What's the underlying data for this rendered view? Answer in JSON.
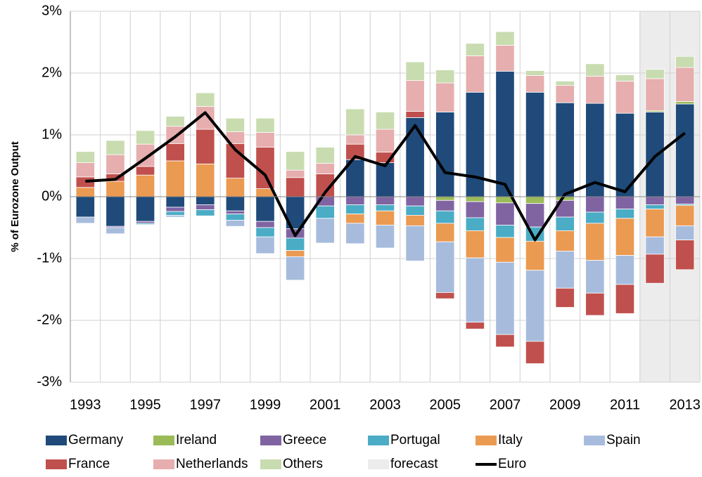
{
  "chart_data": {
    "type": "bar",
    "stacked": true,
    "y_label": "% of Eurozone Output",
    "categories": [
      "1993",
      null,
      "1995",
      null,
      "1997",
      null,
      "1999",
      null,
      "2001",
      null,
      "2003",
      null,
      "2005",
      null,
      "2007",
      null,
      "2009",
      null,
      "2011",
      null,
      "2013"
    ],
    "ylim": [
      -3,
      3
    ],
    "yticks": [
      {
        "value": 3,
        "label": "3%"
      },
      {
        "value": 2,
        "label": "2%"
      },
      {
        "value": 1,
        "label": "1%"
      },
      {
        "value": 0,
        "label": "0%"
      },
      {
        "value": -1,
        "label": "-1%"
      },
      {
        "value": -2,
        "label": "-2%"
      },
      {
        "value": -3,
        "label": "-3%"
      }
    ],
    "grid": true,
    "forecast": {
      "name": "forecast",
      "color": "#ececec",
      "categories": [
        19,
        20
      ]
    },
    "series": [
      {
        "name": "Germany",
        "color": "#1f4a7a",
        "values": [
          -0.33,
          -0.48,
          -0.4,
          -0.17,
          -0.13,
          -0.23,
          -0.4,
          -0.52,
          null,
          0.6,
          0.55,
          1.28,
          1.37,
          1.69,
          2.03,
          1.69,
          1.52,
          1.51,
          1.35,
          1.37,
          1.5
        ]
      },
      {
        "name": "Ireland",
        "color": "#9bbb59",
        "values": [
          null,
          null,
          null,
          null,
          null,
          null,
          null,
          null,
          null,
          null,
          null,
          null,
          -0.06,
          -0.08,
          -0.1,
          -0.11,
          -0.06,
          null,
          null,
          0.02,
          0.04
        ]
      },
      {
        "name": "Greece",
        "color": "#8064a2",
        "values": [
          null,
          -0.02,
          -0.03,
          -0.07,
          -0.08,
          -0.05,
          -0.1,
          -0.15,
          -0.15,
          -0.13,
          -0.13,
          -0.15,
          -0.17,
          -0.26,
          -0.36,
          -0.38,
          -0.27,
          -0.25,
          -0.2,
          -0.13,
          -0.12
        ]
      },
      {
        "name": "Portugal",
        "color": "#4bacc6",
        "values": [
          null,
          null,
          -0.02,
          -0.06,
          -0.1,
          -0.1,
          -0.15,
          -0.2,
          -0.2,
          -0.15,
          -0.1,
          -0.15,
          -0.2,
          -0.21,
          -0.2,
          -0.23,
          -0.22,
          -0.18,
          -0.15,
          -0.07,
          -0.02
        ]
      },
      {
        "name": "Italy",
        "color": "#eb9a52",
        "values": [
          0.15,
          0.25,
          0.35,
          0.58,
          0.53,
          0.3,
          0.13,
          -0.1,
          null,
          -0.15,
          -0.23,
          -0.17,
          -0.3,
          -0.44,
          -0.4,
          -0.47,
          -0.33,
          -0.6,
          -0.6,
          -0.45,
          -0.33
        ]
      },
      {
        "name": "Spain",
        "color": "#a7bcdd",
        "values": [
          -0.1,
          -0.1,
          null,
          -0.03,
          null,
          -0.1,
          -0.27,
          -0.38,
          -0.4,
          -0.33,
          -0.37,
          -0.57,
          -0.82,
          -1.04,
          -1.17,
          -1.15,
          -0.6,
          -0.53,
          -0.47,
          -0.28,
          -0.23
        ]
      },
      {
        "name": "France",
        "color": "#c0504d",
        "values": [
          0.17,
          0.12,
          0.14,
          0.28,
          0.56,
          0.56,
          0.67,
          0.31,
          0.37,
          0.25,
          0.17,
          0.1,
          -0.1,
          -0.11,
          -0.2,
          -0.36,
          -0.31,
          -0.36,
          -0.47,
          -0.47,
          -0.48
        ]
      },
      {
        "name": "Netherlands",
        "color": "#e6aeae",
        "values": [
          0.23,
          0.31,
          0.36,
          0.28,
          0.37,
          0.19,
          0.24,
          0.12,
          0.17,
          0.15,
          0.37,
          0.5,
          0.47,
          0.59,
          0.42,
          0.27,
          0.28,
          0.44,
          0.52,
          0.52,
          0.55
        ]
      },
      {
        "name": "Others",
        "color": "#c8dcb0",
        "values": [
          0.18,
          0.23,
          0.22,
          0.16,
          0.22,
          0.22,
          0.23,
          0.3,
          0.26,
          0.42,
          0.28,
          0.3,
          0.21,
          0.2,
          0.22,
          0.08,
          0.07,
          0.2,
          0.1,
          0.15,
          0.18
        ]
      },
      {
        "name": "Euro",
        "color": "#000000",
        "type": "line",
        "values": [
          0.25,
          0.28,
          0.62,
          0.97,
          1.36,
          0.76,
          0.35,
          -0.63,
          0.07,
          0.65,
          0.5,
          1.15,
          0.39,
          0.32,
          0.2,
          -0.7,
          0.04,
          0.23,
          0.08,
          0.65,
          1.03
        ]
      }
    ]
  }
}
